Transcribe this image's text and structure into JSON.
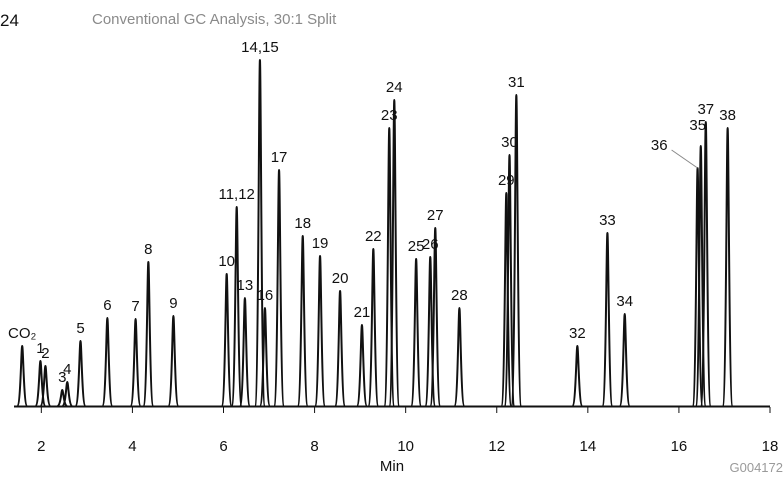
{
  "chart_data": {
    "type": "chromatogram",
    "figure_number": "24",
    "title": "Conventional GC Analysis, 30:1 Split",
    "x_label": "Min",
    "figure_code": "G004172",
    "xlim": [
      1.4,
      18
    ],
    "xticks": [
      2,
      4,
      6,
      8,
      10,
      12,
      14,
      16,
      18
    ],
    "ylim": [
      0,
      350
    ],
    "color": "#111111",
    "peaks": {
      "labels": [
        "CO₂",
        "1",
        "2",
        "3",
        "4",
        "5",
        "6",
        "7",
        "8",
        "9",
        "10",
        "11,12",
        "13",
        "14,15",
        "16",
        "17",
        "18",
        "19",
        "20",
        "21",
        "22",
        "23",
        "24",
        "25",
        "26",
        "27",
        "28",
        "29",
        "30",
        "31",
        "32",
        "33",
        "34",
        "36",
        "35",
        "37",
        "38"
      ],
      "x": [
        1.58,
        1.98,
        2.09,
        2.46,
        2.57,
        2.86,
        3.45,
        4.07,
        4.35,
        4.9,
        6.07,
        6.29,
        6.47,
        6.8,
        6.91,
        7.22,
        7.74,
        8.12,
        8.56,
        9.04,
        9.29,
        9.64,
        9.75,
        10.23,
        10.54,
        10.65,
        11.18,
        12.21,
        12.28,
        12.43,
        13.77,
        14.43,
        14.81,
        16.41,
        16.48,
        16.59,
        17.07
      ],
      "values": [
        60,
        45,
        40,
        16,
        24,
        65,
        88,
        87,
        144,
        90,
        132,
        199,
        108,
        346,
        98,
        236,
        170,
        150,
        115,
        81,
        157,
        278,
        306,
        147,
        149,
        178,
        98,
        213,
        251,
        311,
        60,
        173,
        92,
        238,
        260,
        284,
        278
      ]
    }
  }
}
